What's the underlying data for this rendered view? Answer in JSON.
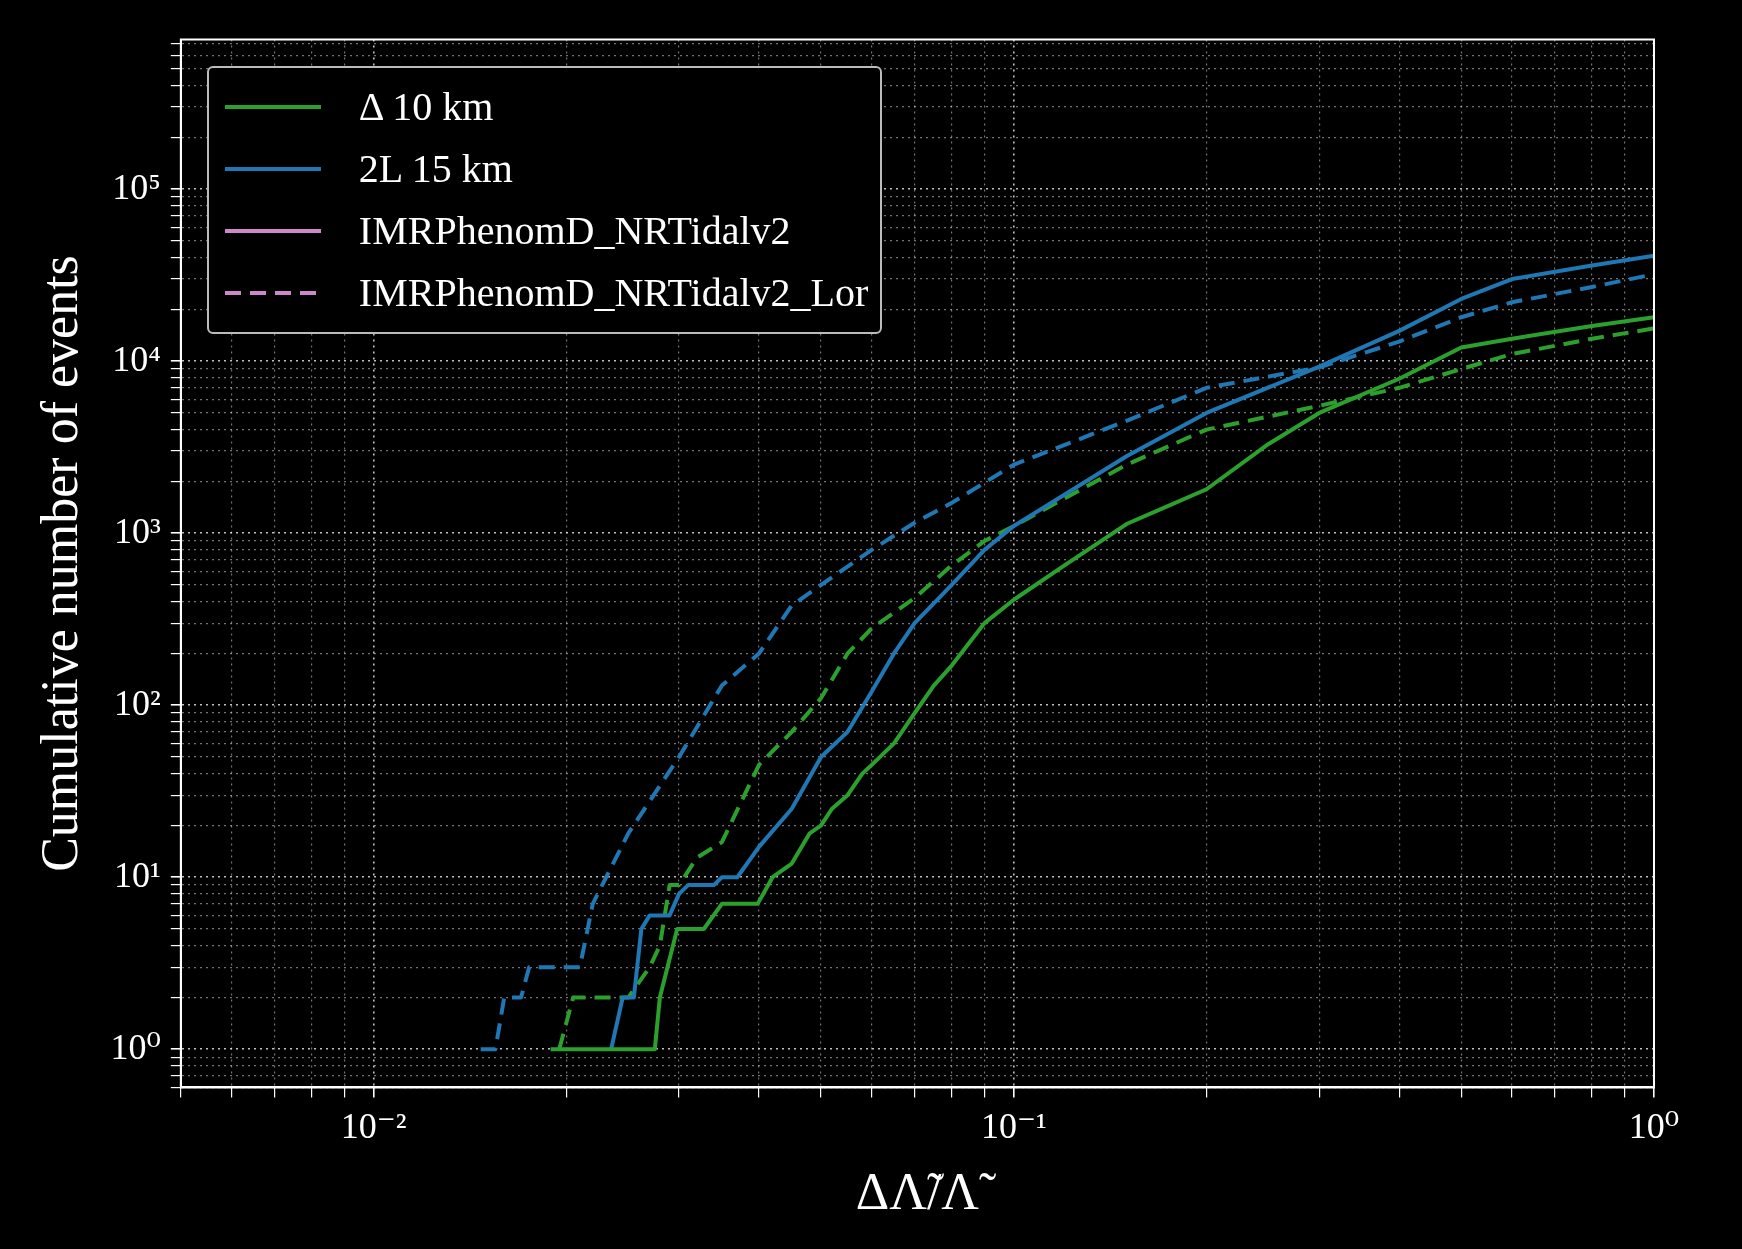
{
  "chart_data": {
    "type": "line",
    "xlabel": "ΔΛ̃/Λ̃",
    "ylabel": "Cumulative number of events",
    "log": "xy",
    "grid": true,
    "legend": "top left",
    "xlim": [
      0.005,
      1
    ],
    "ylim": [
      0.6,
      740000
    ],
    "xticks": [
      {
        "value": 0.005,
        "label": null
      },
      {
        "value": 0.006,
        "label": null
      },
      {
        "value": 0.007,
        "label": null
      },
      {
        "value": 0.008,
        "label": null
      },
      {
        "value": 0.009,
        "label": null
      },
      {
        "value": 0.01,
        "label": "10⁻²"
      },
      {
        "value": 0.02,
        "label": null
      },
      {
        "value": 0.03,
        "label": null
      },
      {
        "value": 0.04,
        "label": null
      },
      {
        "value": 0.05,
        "label": null
      },
      {
        "value": 0.06,
        "label": null
      },
      {
        "value": 0.07,
        "label": null
      },
      {
        "value": 0.08,
        "label": null
      },
      {
        "value": 0.09,
        "label": null
      },
      {
        "value": 0.1,
        "label": "10⁻¹"
      },
      {
        "value": 0.2,
        "label": null
      },
      {
        "value": 0.3,
        "label": null
      },
      {
        "value": 0.4,
        "label": null
      },
      {
        "value": 0.5,
        "label": null
      },
      {
        "value": 0.6,
        "label": null
      },
      {
        "value": 0.7,
        "label": null
      },
      {
        "value": 0.8,
        "label": null
      },
      {
        "value": 0.9,
        "label": null
      },
      {
        "value": 1,
        "label": "10⁰"
      }
    ],
    "yticks": [
      {
        "value": 0.6,
        "label": null
      },
      {
        "value": 0.7,
        "label": null
      },
      {
        "value": 0.8,
        "label": null
      },
      {
        "value": 0.9,
        "label": null
      },
      {
        "value": 1,
        "label": "10⁰"
      },
      {
        "value": 2,
        "label": null
      },
      {
        "value": 3,
        "label": null
      },
      {
        "value": 4,
        "label": null
      },
      {
        "value": 5,
        "label": null
      },
      {
        "value": 6,
        "label": null
      },
      {
        "value": 7,
        "label": null
      },
      {
        "value": 8,
        "label": null
      },
      {
        "value": 9,
        "label": null
      },
      {
        "value": 10,
        "label": "10¹"
      },
      {
        "value": 20,
        "label": null
      },
      {
        "value": 30,
        "label": null
      },
      {
        "value": 40,
        "label": null
      },
      {
        "value": 50,
        "label": null
      },
      {
        "value": 60,
        "label": null
      },
      {
        "value": 70,
        "label": null
      },
      {
        "value": 80,
        "label": null
      },
      {
        "value": 90,
        "label": null
      },
      {
        "value": 100,
        "label": "10²"
      },
      {
        "value": 200,
        "label": null
      },
      {
        "value": 300,
        "label": null
      },
      {
        "value": 400,
        "label": null
      },
      {
        "value": 500,
        "label": null
      },
      {
        "value": 600,
        "label": null
      },
      {
        "value": 700,
        "label": null
      },
      {
        "value": 800,
        "label": null
      },
      {
        "value": 900,
        "label": null
      },
      {
        "value": 1000,
        "label": "10³"
      },
      {
        "value": 2000,
        "label": null
      },
      {
        "value": 3000,
        "label": null
      },
      {
        "value": 4000,
        "label": null
      },
      {
        "value": 5000,
        "label": null
      },
      {
        "value": 6000,
        "label": null
      },
      {
        "value": 7000,
        "label": null
      },
      {
        "value": 8000,
        "label": null
      },
      {
        "value": 9000,
        "label": null
      },
      {
        "value": 10000,
        "label": "10⁴"
      },
      {
        "value": 20000,
        "label": null
      },
      {
        "value": 30000,
        "label": null
      },
      {
        "value": 40000,
        "label": null
      },
      {
        "value": 50000,
        "label": null
      },
      {
        "value": 60000,
        "label": null
      },
      {
        "value": 70000,
        "label": null
      },
      {
        "value": 80000,
        "label": null
      },
      {
        "value": 90000,
        "label": null
      },
      {
        "value": 100000,
        "label": "10⁵"
      },
      {
        "value": 200000,
        "label": null
      },
      {
        "value": 300000,
        "label": null
      },
      {
        "value": 400000,
        "label": null
      },
      {
        "value": 500000,
        "label": null
      },
      {
        "value": 600000,
        "label": null
      },
      {
        "value": 700000,
        "label": null
      }
    ],
    "series": [
      {
        "name": "Δ 10 km",
        "color": "#2ca02c",
        "x": [
          0.0189,
          0.0275,
          0.028,
          0.0298,
          0.0328,
          0.035,
          0.0398,
          0.042,
          0.045,
          0.048,
          0.05,
          0.052,
          0.055,
          0.058,
          0.06,
          0.065,
          0.07,
          0.075,
          0.08,
          0.09,
          0.1,
          0.12,
          0.15,
          0.2,
          0.25,
          0.3,
          0.4,
          0.5,
          0.6,
          0.8,
          1
        ],
        "values": [
          1,
          1,
          2,
          5,
          5,
          7,
          7,
          10,
          12,
          18,
          20,
          25,
          30,
          40,
          45,
          60,
          90,
          130,
          170,
          300,
          410,
          650,
          1130,
          1800,
          3300,
          5000,
          7900,
          12000,
          13500,
          16000,
          18000
        ]
      },
      {
        "name": "2L 15 km",
        "color": "#1f77b4",
        "x": [
          0.0235,
          0.0245,
          0.0255,
          0.0262,
          0.027,
          0.029,
          0.03,
          0.031,
          0.034,
          0.035,
          0.037,
          0.04,
          0.045,
          0.05,
          0.055,
          0.06,
          0.065,
          0.07,
          0.08,
          0.09,
          0.1,
          0.15,
          0.2,
          0.3,
          0.4,
          0.5,
          0.6,
          0.8,
          1
        ],
        "values": [
          1,
          2,
          2,
          5,
          6,
          6,
          8,
          9,
          9,
          10,
          10,
          15,
          25,
          50,
          70,
          120,
          200,
          300,
          500,
          800,
          1100,
          2800,
          5000,
          9300,
          15000,
          23000,
          30000,
          36000,
          41000
        ]
      },
      {
        "color": "#2ca02c",
        "line_style": "dashed",
        "x": [
          0.0195,
          0.0205,
          0.025,
          0.027,
          0.028,
          0.029,
          0.03,
          0.032,
          0.035,
          0.04,
          0.045,
          0.05,
          0.055,
          0.06,
          0.07,
          0.08,
          0.09,
          0.1,
          0.15,
          0.2,
          0.3,
          0.4,
          0.5,
          0.6,
          0.8,
          1
        ],
        "values": [
          1,
          2,
          2,
          3,
          4,
          9,
          9,
          13,
          16,
          45,
          70,
          110,
          200,
          280,
          420,
          650,
          900,
          1100,
          2500,
          4000,
          5500,
          7000,
          9000,
          11000,
          13500,
          15500
        ]
      },
      {
        "color": "#1f77b4",
        "line_style": "dashed",
        "x": [
          0.0147,
          0.0155,
          0.016,
          0.017,
          0.0175,
          0.021,
          0.022,
          0.025,
          0.03,
          0.035,
          0.04,
          0.045,
          0.05,
          0.06,
          0.07,
          0.08,
          0.1,
          0.15,
          0.2,
          0.3,
          0.4,
          0.5,
          0.6,
          0.8,
          1
        ],
        "values": [
          1,
          1,
          2,
          2,
          3,
          3,
          7,
          18,
          50,
          130,
          200,
          380,
          500,
          800,
          1150,
          1500,
          2500,
          4500,
          7000,
          9200,
          13000,
          18000,
          22000,
          27000,
          32000
        ]
      },
      {
        "name": "IMRPhenomD_NRTidalv2",
        "color": "#cc88c8"
      },
      {
        "name": "IMRPhenomD_NRTidalv2_Lor",
        "color": "#cc88c8",
        "line_style": "dashed"
      }
    ]
  }
}
